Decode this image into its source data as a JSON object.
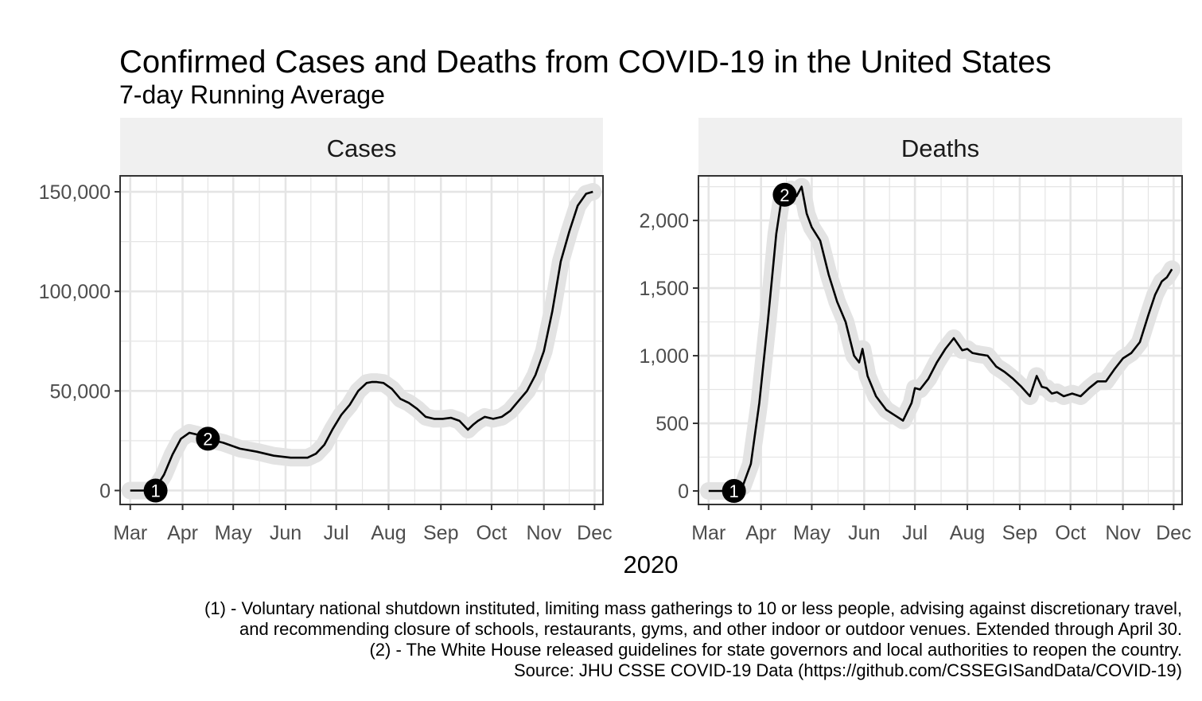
{
  "title": "Confirmed Cases and Deaths from COVID-19 in the United States",
  "subtitle": "7-day Running Average",
  "xlabel": "2020",
  "caption": [
    "(1) - Voluntary national shutdown instituted, limiting mass gatherings to 10 or less people, advising against discretionary travel,",
    "and recommending closure of schools, restaurants, gyms, and other indoor or outdoor venues. Extended through April 30.",
    "(2) - The White House released guidelines for state governors and local authorities to reopen the country.",
    "Source: JHU CSSE COVID-19 Data (https://github.com/CSSEGISandData/COVID-19)"
  ],
  "colors": {
    "strip": "#f0f0f0",
    "grid": "#e5e5e5",
    "halo": "#e3e3e3",
    "line": "#000000",
    "axis": "#333333",
    "tick_text": "#4d4d4d",
    "marker_text": "#ffffff"
  },
  "chart_data": [
    {
      "type": "line",
      "facet": "Cases",
      "x_unit": "day of 2020 (Jan 1 = 0)",
      "xlim": [
        54,
        340
      ],
      "ylim": [
        -7000,
        158000
      ],
      "x_ticks": [
        {
          "day": 60,
          "label": "Mar"
        },
        {
          "day": 91,
          "label": "Apr"
        },
        {
          "day": 121,
          "label": "May"
        },
        {
          "day": 152,
          "label": "Jun"
        },
        {
          "day": 182,
          "label": "Jul"
        },
        {
          "day": 213,
          "label": "Aug"
        },
        {
          "day": 244,
          "label": "Sep"
        },
        {
          "day": 274,
          "label": "Oct"
        },
        {
          "day": 305,
          "label": "Nov"
        },
        {
          "day": 335,
          "label": "Dec"
        }
      ],
      "y_ticks": [
        0,
        50000,
        100000,
        150000
      ],
      "y_tick_labels": [
        "0",
        "50,000",
        "100,000",
        "150,000"
      ],
      "x": [
        60,
        70,
        75,
        80,
        85,
        90,
        95,
        100,
        105,
        115,
        125,
        135,
        145,
        155,
        165,
        170,
        175,
        180,
        185,
        190,
        195,
        200,
        203,
        206,
        210,
        215,
        220,
        225,
        230,
        235,
        240,
        245,
        250,
        255,
        260,
        263,
        266,
        270,
        275,
        280,
        285,
        290,
        295,
        300,
        305,
        310,
        315,
        320,
        325,
        330,
        334
      ],
      "values": [
        0,
        0,
        1200,
        8000,
        18000,
        26000,
        29000,
        28000,
        26000,
        24000,
        21000,
        19500,
        17500,
        16500,
        16500,
        18500,
        23000,
        31000,
        38000,
        43000,
        50000,
        54000,
        54500,
        54500,
        54000,
        51000,
        46000,
        44000,
        41000,
        37000,
        36000,
        36000,
        36500,
        35000,
        30500,
        33000,
        35000,
        37000,
        36000,
        37000,
        40000,
        45000,
        50000,
        58000,
        70000,
        90000,
        115000,
        130000,
        143000,
        149000,
        150000
      ],
      "annotations": [
        {
          "label": "1",
          "x": 75,
          "y": 0
        },
        {
          "label": "2",
          "x": 106,
          "y": 26000
        }
      ]
    },
    {
      "type": "line",
      "facet": "Deaths",
      "x_unit": "day of 2020 (Jan 1 = 0)",
      "xlim": [
        54,
        340
      ],
      "ylim": [
        -100,
        2330
      ],
      "x_ticks": [
        {
          "day": 60,
          "label": "Mar"
        },
        {
          "day": 91,
          "label": "Apr"
        },
        {
          "day": 121,
          "label": "May"
        },
        {
          "day": 152,
          "label": "Jun"
        },
        {
          "day": 182,
          "label": "Jul"
        },
        {
          "day": 213,
          "label": "Aug"
        },
        {
          "day": 244,
          "label": "Sep"
        },
        {
          "day": 274,
          "label": "Oct"
        },
        {
          "day": 305,
          "label": "Nov"
        },
        {
          "day": 335,
          "label": "Dec"
        }
      ],
      "y_ticks": [
        0,
        500,
        1000,
        1500,
        2000
      ],
      "y_tick_labels": [
        "0",
        "500",
        "1,000",
        "1,500",
        "2,000"
      ],
      "x": [
        60,
        70,
        75,
        80,
        85,
        90,
        95,
        100,
        103,
        106,
        109,
        112,
        115,
        118,
        121,
        126,
        131,
        136,
        141,
        146,
        149,
        151,
        154,
        159,
        165,
        170,
        175,
        180,
        182,
        185,
        190,
        195,
        200,
        205,
        210,
        213,
        216,
        220,
        225,
        230,
        235,
        240,
        245,
        250,
        254,
        257,
        260,
        263,
        266,
        270,
        275,
        280,
        285,
        290,
        295,
        300,
        305,
        310,
        315,
        320,
        324,
        328,
        331,
        334
      ],
      "values": [
        0,
        0,
        0,
        30,
        200,
        650,
        1250,
        1900,
        2150,
        2200,
        2230,
        2180,
        2250,
        2050,
        1950,
        1850,
        1600,
        1400,
        1250,
        1000,
        950,
        1050,
        850,
        700,
        600,
        560,
        520,
        650,
        760,
        750,
        830,
        950,
        1050,
        1130,
        1040,
        1050,
        1020,
        1010,
        1000,
        920,
        880,
        830,
        770,
        700,
        850,
        770,
        760,
        720,
        730,
        700,
        720,
        700,
        760,
        810,
        810,
        900,
        980,
        1020,
        1100,
        1300,
        1450,
        1550,
        1580,
        1640
      ],
      "annotations": [
        {
          "label": "1",
          "x": 75,
          "y": 0
        },
        {
          "label": "2",
          "x": 105,
          "y": 2190
        }
      ]
    }
  ]
}
